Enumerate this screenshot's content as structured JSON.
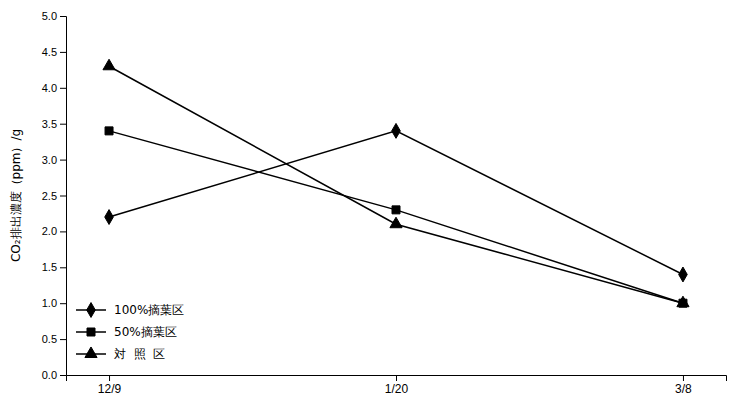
{
  "chart_data": {
    "type": "line",
    "categories": [
      "12/9",
      "1/20",
      "3/8"
    ],
    "series": [
      {
        "name": "100%摘葉区",
        "color": "#000000",
        "marker": "diamond",
        "line_style": "solid",
        "values": [
          2.2,
          3.4,
          1.4
        ]
      },
      {
        "name": "50%摘葉区",
        "color": "#000000",
        "marker": "square",
        "line_style": "solid",
        "values": [
          3.4,
          2.3,
          1.0
        ]
      },
      {
        "name": "対  照  区",
        "color": "#000000",
        "marker": "triangle",
        "line_style": "solid",
        "values": [
          4.3,
          2.1,
          1.0
        ]
      }
    ],
    "y_label": "CO₂排出濃度（ppm）/g",
    "ylim": [
      0.0,
      5.0
    ],
    "yticks": [
      {
        "value": 0,
        "label": "0.0"
      },
      0.5,
      {
        "value": 1,
        "label": "1.0"
      },
      1.5,
      {
        "value": 2,
        "label": "2.0"
      },
      2.5,
      {
        "value": 3,
        "label": "3.0"
      },
      3.5,
      {
        "value": 4,
        "label": "4.0"
      },
      4.5,
      {
        "value": 5,
        "label": "5.0"
      }
    ],
    "grid": false,
    "legend": "lower left"
  }
}
